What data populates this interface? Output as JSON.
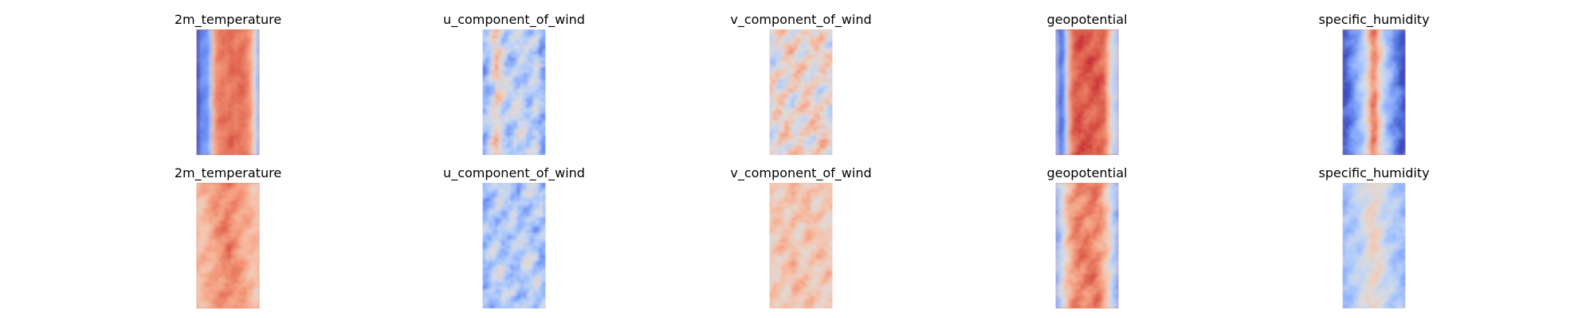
{
  "figure": {
    "background": "#ffffff"
  },
  "chart_data": [
    {
      "type": "heatmap",
      "title": "2m_temperature",
      "colormap": "coolwarm",
      "grid": false,
      "axes": "off",
      "profile": [
        0.03,
        0.14,
        0.16,
        0.18,
        0.33,
        0.68,
        0.78,
        0.81,
        0.82,
        0.81,
        0.83,
        0.84,
        0.82,
        0.84,
        0.84,
        0.82,
        0.78,
        0.7,
        0.52,
        0.33
      ],
      "variability": 0.06
    },
    {
      "type": "heatmap",
      "title": "u_component_of_wind",
      "colormap": "coolwarm",
      "grid": false,
      "axes": "off",
      "profile": [
        0.28,
        0.3,
        0.4,
        0.5,
        0.6,
        0.55,
        0.45,
        0.38,
        0.36,
        0.38,
        0.4,
        0.42,
        0.4,
        0.38,
        0.36,
        0.35,
        0.4,
        0.42,
        0.3,
        0.26
      ],
      "variability": 0.22
    },
    {
      "type": "heatmap",
      "title": "v_component_of_wind",
      "colormap": "coolwarm",
      "grid": false,
      "axes": "off",
      "profile": [
        0.5,
        0.52,
        0.52,
        0.54,
        0.55,
        0.56,
        0.55,
        0.54,
        0.55,
        0.56,
        0.55,
        0.56,
        0.57,
        0.56,
        0.55,
        0.54,
        0.55,
        0.56,
        0.53,
        0.5
      ],
      "variability": 0.25
    },
    {
      "type": "heatmap",
      "title": "geopotential",
      "colormap": "coolwarm",
      "grid": false,
      "axes": "off",
      "profile": [
        0.28,
        0.1,
        0.16,
        0.4,
        0.72,
        0.84,
        0.87,
        0.88,
        0.88,
        0.87,
        0.88,
        0.88,
        0.87,
        0.88,
        0.86,
        0.84,
        0.72,
        0.55,
        0.42,
        0.38
      ],
      "variability": 0.08
    },
    {
      "type": "heatmap",
      "title": "specific_humidity",
      "colormap": "coolwarm",
      "grid": false,
      "axes": "off",
      "profile": [
        0.02,
        0.06,
        0.12,
        0.18,
        0.24,
        0.3,
        0.38,
        0.48,
        0.62,
        0.78,
        0.78,
        0.62,
        0.48,
        0.38,
        0.3,
        0.24,
        0.18,
        0.12,
        0.06,
        0.02
      ],
      "variability": 0.12
    },
    {
      "type": "heatmap",
      "title": "2m_temperature",
      "colormap": "coolwarm",
      "grid": false,
      "axes": "off",
      "profile": [
        0.62,
        0.64,
        0.66,
        0.68,
        0.7,
        0.72,
        0.74,
        0.76,
        0.78,
        0.8,
        0.8,
        0.78,
        0.76,
        0.74,
        0.72,
        0.7,
        0.68,
        0.66,
        0.64,
        0.62
      ],
      "variability": 0.1
    },
    {
      "type": "heatmap",
      "title": "u_component_of_wind",
      "colormap": "coolwarm",
      "grid": false,
      "axes": "off",
      "profile": [
        0.3,
        0.32,
        0.34,
        0.36,
        0.38,
        0.38,
        0.36,
        0.34,
        0.34,
        0.36,
        0.36,
        0.34,
        0.34,
        0.36,
        0.38,
        0.38,
        0.36,
        0.34,
        0.32,
        0.3
      ],
      "variability": 0.22
    },
    {
      "type": "heatmap",
      "title": "v_component_of_wind",
      "colormap": "coolwarm",
      "grid": false,
      "axes": "off",
      "profile": [
        0.58,
        0.6,
        0.6,
        0.62,
        0.62,
        0.6,
        0.62,
        0.64,
        0.62,
        0.6,
        0.6,
        0.62,
        0.64,
        0.62,
        0.6,
        0.62,
        0.62,
        0.6,
        0.6,
        0.58
      ],
      "variability": 0.14
    },
    {
      "type": "heatmap",
      "title": "geopotential",
      "colormap": "coolwarm",
      "grid": false,
      "axes": "off",
      "profile": [
        0.3,
        0.38,
        0.5,
        0.6,
        0.68,
        0.74,
        0.78,
        0.8,
        0.8,
        0.8,
        0.8,
        0.8,
        0.8,
        0.78,
        0.74,
        0.68,
        0.6,
        0.5,
        0.38,
        0.3
      ],
      "variability": 0.12
    },
    {
      "type": "heatmap",
      "title": "specific_humidity",
      "colormap": "coolwarm",
      "grid": false,
      "axes": "off",
      "profile": [
        0.3,
        0.32,
        0.34,
        0.36,
        0.38,
        0.4,
        0.44,
        0.48,
        0.52,
        0.56,
        0.56,
        0.52,
        0.48,
        0.44,
        0.4,
        0.38,
        0.36,
        0.34,
        0.32,
        0.3
      ],
      "variability": 0.12
    }
  ]
}
